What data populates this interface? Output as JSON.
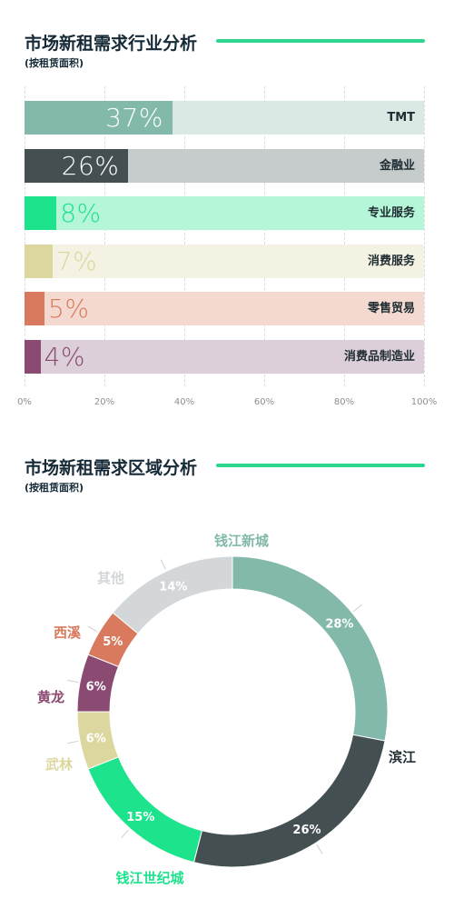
{
  "charts": {
    "industry": {
      "title": "市场新租需求行业分析",
      "subtitle": "(按租赁面积)",
      "rule_color": "#2ed68f"
    },
    "region": {
      "title": "市场新租需求区域分析",
      "subtitle": "(按租赁面积)",
      "rule_color": "#2ed68f"
    }
  },
  "chart_data": [
    {
      "type": "bar",
      "orientation": "horizontal",
      "title": "市场新租需求行业分析",
      "subtitle": "(按租赁面积)",
      "categories": [
        "TMT",
        "金融业",
        "专业服务",
        "消费服务",
        "零售贸易",
        "消费品制造业"
      ],
      "values": [
        37,
        26,
        8,
        7,
        5,
        4
      ],
      "value_labels": [
        "37%",
        "26%",
        "8%",
        "7%",
        "5%",
        "4%"
      ],
      "colors": [
        "#82b9aa",
        "#434f51",
        "#1de38d",
        "#dcd79e",
        "#d97a5e",
        "#8a4a72"
      ],
      "track_colors": [
        "#dae9e4",
        "#c6cbcb",
        "#b6f6d8",
        "#f4f2e2",
        "#f3d9cf",
        "#dccfd9"
      ],
      "xlim": [
        0,
        100
      ],
      "x_ticks": [
        "0%",
        "20%",
        "40%",
        "60%",
        "80%",
        "100%"
      ],
      "grid": true
    },
    {
      "type": "pie",
      "style": "donut",
      "title": "市场新租需求区域分析",
      "subtitle": "(按租赁面积)",
      "categories": [
        "钱江新城",
        "滨江",
        "钱江世纪城",
        "武林",
        "黄龙",
        "西溪",
        "其他"
      ],
      "values": [
        28,
        26,
        15,
        6,
        6,
        5,
        14
      ],
      "value_labels": [
        "28%",
        "26%",
        "15%",
        "6%",
        "6%",
        "5%",
        "14%"
      ],
      "colors": [
        "#82b9aa",
        "#434f51",
        "#1de38d",
        "#dcd79e",
        "#8a4a72",
        "#d97a5e",
        "#d3d7da"
      ],
      "label_colors": [
        "#82b9aa",
        "#1f2d33",
        "#1de38d",
        "#dcd79e",
        "#8a4a72",
        "#d97a5e",
        "#d3d7da"
      ]
    }
  ]
}
